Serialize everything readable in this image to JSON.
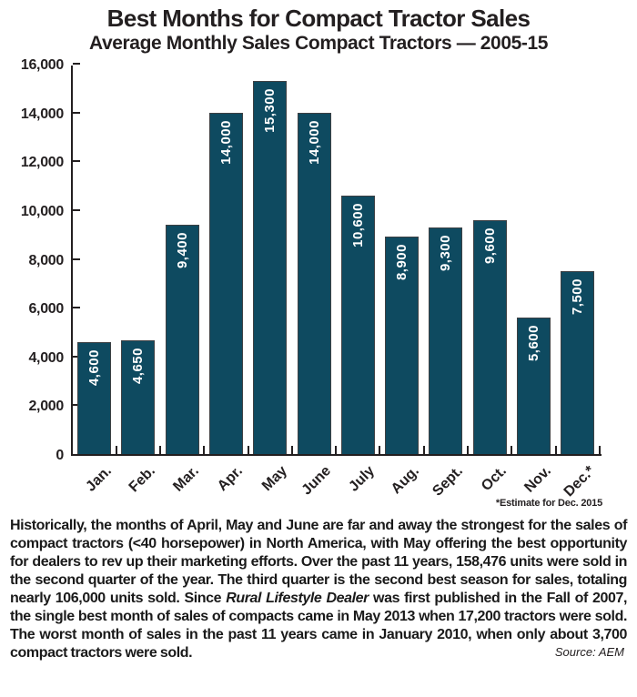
{
  "title": "Best Months for Compact Tractor Sales",
  "subtitle": "Average Monthly Sales Compact Tractors — 2005-15",
  "chart_data": {
    "type": "bar",
    "title": "Best Months for Compact Tractor Sales",
    "subtitle": "Average Monthly Sales Compact Tractors — 2005-15",
    "categories": [
      "Jan.",
      "Feb.",
      "Mar.",
      "Apr.",
      "May",
      "June",
      "July",
      "Aug.",
      "Sept.",
      "Oct.",
      "Nov.",
      "Dec.*"
    ],
    "values": [
      4600,
      4650,
      9400,
      14000,
      15300,
      14000,
      10600,
      8900,
      9300,
      9600,
      5600,
      7500
    ],
    "value_labels": [
      "4,600",
      "4,650",
      "9,400",
      "14,000",
      "15,300",
      "14,000",
      "10,600",
      "8,900",
      "9,300",
      "9,600",
      "5,600",
      "7,500"
    ],
    "xlabel": "",
    "ylabel": "",
    "ylim": [
      0,
      16000
    ],
    "ytick_step": 2000,
    "ytick_labels": [
      "0",
      "2,000",
      "4,000",
      "6,000",
      "8,000",
      "10,000",
      "12,000",
      "14,000",
      "16,000"
    ],
    "grid": false,
    "legend_position": "none",
    "bar_color": "#0e4a60",
    "bar_outline_color": "#3d4043",
    "bar_label_color": "#ffffff",
    "axis_color": "#231f20"
  },
  "chart_note": "*Estimate for Dec. 2015",
  "body": {
    "segments": [
      {
        "text": "Historically, the months of April, May and June are far and away the strongest for the sales of compact tractors (<40 horsepower) in North America, with May offering the best opportunity for dealers to rev up their marketing efforts. Over the past 11 years, 158,476 units were sold in the second quarter of the year. The third quarter is the second best season for sales, totaling nearly 106,000 units sold. Since ",
        "italic": false
      },
      {
        "text": "Rural Lifestyle Dealer",
        "italic": true
      },
      {
        "text": " was first published in the Fall of 2007, the single best month of sales of compacts came in May 2013 when 17,200 tractors were sold. The worst month of sales in the past 11 years came in January 2010, when only about 3,700 compact tractors were sold.",
        "italic": false
      }
    ]
  },
  "source": "Source: AEM"
}
